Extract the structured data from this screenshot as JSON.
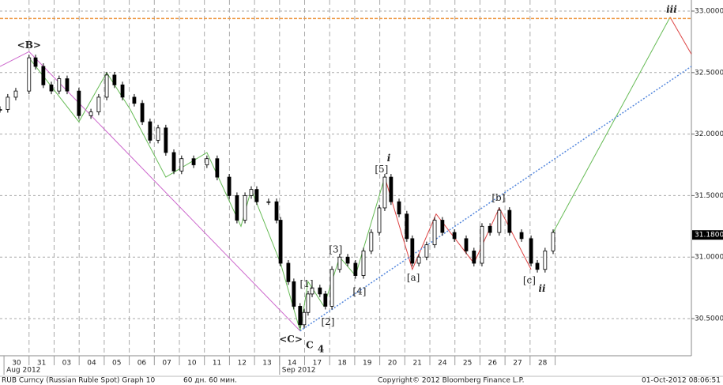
{
  "chart_data": {
    "type": "candlestick",
    "categories": [
      "30",
      "31",
      "03",
      "04",
      "05",
      "06",
      "07",
      "10",
      "11",
      "12",
      "13",
      "14",
      "17",
      "18",
      "19",
      "20",
      "21",
      "24",
      "25",
      "26",
      "27",
      "28"
    ],
    "group_labels": [
      {
        "label": "Aug 2012",
        "category": 0
      },
      {
        "label": "Sep 2012",
        "category": 11
      }
    ],
    "xlim": [
      -0.66,
      26.94
    ],
    "ylim": [
      30.198,
      33.09
    ],
    "yticks": [
      {
        "value": 30.5,
        "label": "30.5000"
      },
      {
        "value": 31,
        "label": "31.0000"
      },
      {
        "value": 31.5,
        "label": "31.5000"
      },
      {
        "value": 32,
        "label": "32.0000"
      },
      {
        "value": 32.5,
        "label": "32.5000"
      },
      {
        "value": 33,
        "label": "33.0000"
      }
    ],
    "grid": true,
    "series": [
      {
        "name": "RUB Curncy",
        "color": "#000000",
        "x": [
          -0.66,
          -0.35,
          -0.03,
          0.5,
          0.76,
          1.07,
          1.39,
          1.7,
          2.02,
          2.49,
          2.97,
          3.28,
          3.6,
          3.91,
          4.23,
          4.7,
          5.02,
          5.33,
          5.65,
          5.96,
          6.28,
          6.59,
          7.07,
          7.6,
          8.01,
          8.49,
          8.8,
          9.12,
          9.37,
          9.59,
          10.06,
          10.38,
          10.54,
          10.85,
          11.07,
          11.32,
          11.48,
          11.64,
          11.8,
          12.11,
          12.33,
          12.59,
          12.9,
          13.22,
          13.53,
          13.85,
          14.16,
          14.48,
          14.7,
          14.95,
          15.27,
          15.58,
          15.8,
          16.06,
          16.37,
          16.69,
          17.0,
          17.48,
          17.95,
          18.26,
          18.58,
          18.9,
          19.27,
          19.68,
          20.16,
          20.54,
          20.79,
          21.1,
          21.42
        ],
        "values": [
          32.2,
          32.3,
          32.35,
          32.62,
          32.55,
          32.4,
          32.35,
          32.45,
          32.35,
          32.15,
          32.18,
          32.3,
          32.48,
          32.4,
          32.3,
          32.25,
          32.1,
          31.95,
          32.05,
          31.85,
          31.7,
          31.8,
          31.75,
          31.8,
          31.65,
          31.5,
          31.3,
          31.5,
          31.55,
          31.45,
          31.45,
          31.3,
          30.95,
          30.8,
          30.6,
          30.45,
          30.55,
          30.7,
          30.75,
          30.7,
          30.6,
          30.9,
          31.0,
          30.95,
          30.85,
          31.05,
          31.2,
          31.4,
          31.65,
          31.45,
          31.35,
          31.15,
          30.95,
          31.0,
          31.1,
          31.3,
          31.2,
          31.15,
          31.05,
          30.95,
          31.25,
          31.2,
          31.38,
          31.2,
          31.15,
          30.95,
          30.9,
          31.05,
          31.2
        ]
      }
    ],
    "lines": [
      {
        "color": "#66bb55",
        "style": "solid",
        "x": [
          0.5,
          2.49,
          3.6,
          4.54,
          5.96,
          7.6,
          8.96,
          9.37,
          10.54,
          11.32,
          11.64,
          12.27,
          12.9,
          13.53,
          14.7
        ],
        "y": [
          32.62,
          32.1,
          32.5,
          32.2,
          31.65,
          31.85,
          31.25,
          31.55,
          30.95,
          30.4,
          30.8,
          30.6,
          31.0,
          30.85,
          31.65
        ]
      },
      {
        "color": "#dd4444",
        "style": "solid",
        "x": [
          14.7,
          15.8,
          16.75,
          18.26,
          19.27,
          20.54
        ],
        "y": [
          31.65,
          30.9,
          31.35,
          30.95,
          31.4,
          30.9
        ]
      },
      {
        "color": "#66bb55",
        "style": "solid",
        "x": [
          21.42,
          26.09
        ],
        "y": [
          31.2,
          32.95
        ]
      },
      {
        "color": "#dd4444",
        "style": "solid",
        "x": [
          26.09,
          26.94
        ],
        "y": [
          32.95,
          32.65
        ]
      },
      {
        "color": "#cc66cc",
        "style": "solid",
        "x": [
          -0.66,
          0.5,
          11.32
        ],
        "y": [
          32.55,
          32.67,
          30.4
        ]
      },
      {
        "color": "#5588dd",
        "style": "dotted",
        "x": [
          11.32,
          26.94
        ],
        "y": [
          30.4,
          32.55
        ]
      },
      {
        "color": "#ee9944",
        "style": "dashed",
        "x": [
          -0.66,
          26.94
        ],
        "y": [
          32.94,
          32.94
        ]
      }
    ],
    "annotations": [
      {
        "text": "<B>",
        "x": 0.5,
        "y": 32.72,
        "color": "#cc2222"
      },
      {
        "text": "<C>",
        "x": 10.95,
        "y": 30.33,
        "color": "#cc2222"
      },
      {
        "text": "C",
        "x": 11.7,
        "y": 30.28,
        "color": "#9944bb"
      },
      {
        "text": "4",
        "x": 12.15,
        "y": 30.25,
        "color": "#6699cc"
      },
      {
        "text": "[1]",
        "x": 11.58,
        "y": 30.78,
        "color": "#55aa55"
      },
      {
        "text": "[2]",
        "x": 12.43,
        "y": 30.47,
        "color": "#55aa55"
      },
      {
        "text": "[3]",
        "x": 12.74,
        "y": 31.06,
        "color": "#55aa55"
      },
      {
        "text": "[4]",
        "x": 13.69,
        "y": 30.72,
        "color": "#55aa55"
      },
      {
        "text": "[5]",
        "x": 14.57,
        "y": 31.71,
        "color": "#55aa55"
      },
      {
        "text": "i",
        "x": 14.86,
        "y": 31.8,
        "color": "#77aa77"
      },
      {
        "text": "[a]",
        "x": 15.84,
        "y": 30.83,
        "color": "#cc3333"
      },
      {
        "text": "[b]",
        "x": 19.24,
        "y": 31.48,
        "color": "#cc3333"
      },
      {
        "text": "[c]",
        "x": 20.47,
        "y": 30.81,
        "color": "#cc3333"
      },
      {
        "text": "ii",
        "x": 20.98,
        "y": 30.74,
        "color": "#77aa77"
      },
      {
        "text": "iii",
        "x": 26.15,
        "y": 33.01,
        "color": "#77aa77"
      }
    ],
    "last_price": {
      "value": 31.18,
      "label": "31.1800"
    }
  },
  "footer": {
    "left": "RUB Curncy (Russian Ruble Spot) Graph 10",
    "period": "60 дн. 60 мин.",
    "copyright": "Copyright© 2012 Bloomberg Finance L.P.",
    "timestamp": "01-Oct-2012 08:06:51"
  }
}
